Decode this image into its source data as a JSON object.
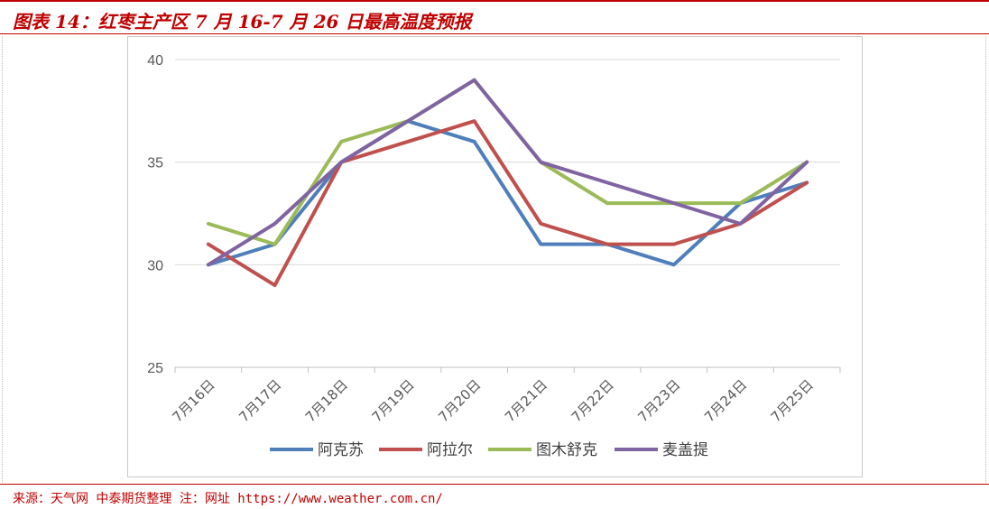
{
  "header": {
    "title": "图表 14：红枣主产区 7 月 16-7 月 26 日最高温度预报"
  },
  "footer": {
    "source": "来源：天气网 中泰期货整理 注：网址 https://www.weather.com.cn/"
  },
  "chart_data": {
    "type": "line",
    "title": "",
    "xlabel": "",
    "ylabel": "",
    "categories": [
      "7月16日",
      "7月17日",
      "7月18日",
      "7月19日",
      "7月20日",
      "7月21日",
      "7月22日",
      "7月23日",
      "7月24日",
      "7月25日"
    ],
    "ylim": [
      25,
      40
    ],
    "yticks": [
      25,
      30,
      35,
      40
    ],
    "grid": true,
    "legend_position": "bottom",
    "series": [
      {
        "name": "阿克苏",
        "color": "#4e7fbb",
        "values": [
          30,
          31,
          35,
          37,
          36,
          31,
          31,
          30,
          33,
          34
        ]
      },
      {
        "name": "阿拉尔",
        "color": "#c0504d",
        "values": [
          31,
          29,
          35,
          36,
          37,
          32,
          31,
          31,
          32,
          34
        ]
      },
      {
        "name": "图木舒克",
        "color": "#9bbb59",
        "values": [
          32,
          31,
          36,
          37,
          39,
          35,
          33,
          33,
          33,
          35
        ]
      },
      {
        "name": "麦盖提",
        "color": "#8064a2",
        "values": [
          30,
          32,
          35,
          37,
          39,
          35,
          34,
          33,
          32,
          35
        ]
      }
    ]
  }
}
